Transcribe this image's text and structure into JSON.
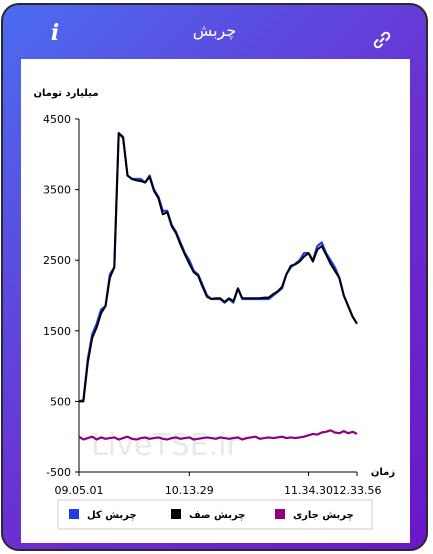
{
  "header": {
    "title": "چربش",
    "info_icon": "info-icon",
    "link_icon": "link-icon"
  },
  "watermark": "LiveTSE.ir",
  "chart_data": {
    "type": "line",
    "ylabel": "میلیارد تومان",
    "xlabel": "زمان",
    "ylim": [
      -500,
      4500
    ],
    "yticks": [
      4500,
      3500,
      2500,
      1500,
      500,
      -500
    ],
    "xticks": [
      "09.05.01",
      "10.13.29",
      "11.34.30",
      "12.33.56"
    ],
    "x": [
      "09.05.01",
      "09.08",
      "09.10",
      "09.13",
      "09.16",
      "09.19",
      "09.22",
      "09.25",
      "09.28",
      "09.31",
      "09.33",
      "09.35",
      "09.36",
      "09.37",
      "09.40",
      "09.43",
      "09.46",
      "09.49",
      "09.52",
      "09.55",
      "09.58",
      "10.01",
      "10.04",
      "10.07",
      "10.10",
      "10.13.29",
      "10.16",
      "10.19",
      "10.22",
      "10.25",
      "10.28",
      "10.31",
      "10.34",
      "10.37",
      "10.40",
      "10.43",
      "10.46",
      "10.49",
      "10.52",
      "10.55",
      "10.58",
      "11.01",
      "11.04",
      "11.07",
      "11.10",
      "11.13",
      "11.16",
      "11.19",
      "11.22",
      "11.25",
      "11.28",
      "11.31",
      "11.34.30",
      "11.40",
      "11.46",
      "11.52",
      "11.58",
      "12.04",
      "12.10",
      "12.16",
      "12.22",
      "12.28",
      "12.31",
      "12.33.56"
    ],
    "series": [
      {
        "name": "چربش کل",
        "color": "#1f3de6",
        "values": [
          500,
          520,
          1100,
          1450,
          1600,
          1800,
          1850,
          2300,
          2400,
          4300,
          4250,
          3700,
          3650,
          3650,
          3650,
          3600,
          3700,
          3500,
          3400,
          3200,
          3200,
          3000,
          2900,
          2750,
          2600,
          2500,
          2350,
          2300,
          2150,
          2000,
          1950,
          1950,
          1950,
          1900,
          1950,
          1900,
          2100,
          1950,
          1950,
          1950,
          1950,
          1950,
          1950,
          1950,
          2000,
          2050,
          2100,
          2300,
          2400,
          2450,
          2500,
          2600,
          2600,
          2500,
          2700,
          2750,
          2600,
          2500,
          2400,
          2250,
          2000,
          1850,
          1700,
          1600
        ]
      },
      {
        "name": "چربش صف",
        "color": "#000000",
        "values": [
          500,
          500,
          1050,
          1400,
          1550,
          1750,
          1850,
          2250,
          2400,
          4300,
          4230,
          3700,
          3650,
          3630,
          3620,
          3600,
          3680,
          3480,
          3380,
          3150,
          3180,
          2980,
          2880,
          2720,
          2580,
          2450,
          2330,
          2280,
          2120,
          1980,
          1950,
          1960,
          1960,
          1910,
          1960,
          1920,
          2100,
          1960,
          1960,
          1960,
          1960,
          1960,
          1970,
          1970,
          2020,
          2060,
          2120,
          2300,
          2420,
          2440,
          2480,
          2550,
          2600,
          2480,
          2650,
          2700,
          2580,
          2450,
          2350,
          2250,
          2000,
          1850,
          1700,
          1600
        ]
      },
      {
        "name": "چربش جاری",
        "color": "#8e0080",
        "values": [
          0,
          -40,
          -20,
          0,
          -40,
          -10,
          -30,
          -20,
          -10,
          -40,
          -20,
          0,
          -30,
          -40,
          -20,
          -10,
          -30,
          -20,
          -10,
          -30,
          -40,
          -20,
          -10,
          -30,
          -20,
          -10,
          -40,
          -30,
          -20,
          -10,
          -20,
          -30,
          -10,
          -20,
          -30,
          -20,
          -10,
          -40,
          -20,
          -10,
          0,
          -30,
          -20,
          -10,
          -20,
          -10,
          0,
          -20,
          -10,
          -20,
          -10,
          0,
          20,
          40,
          30,
          60,
          70,
          90,
          60,
          50,
          80,
          50,
          70,
          40
        ]
      }
    ],
    "legend_placement": "bottom",
    "grid": false
  }
}
